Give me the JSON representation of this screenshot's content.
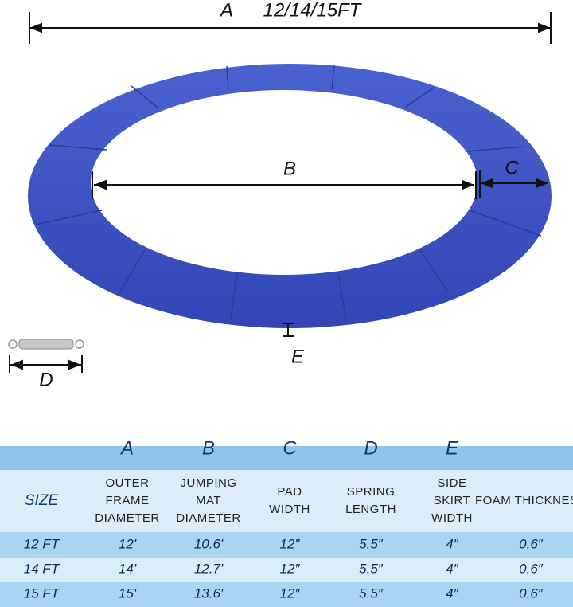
{
  "diagram": {
    "overall_label": "A",
    "overall_size": "12/14/15FT",
    "inner_label": "B",
    "pad_label": "C",
    "spring_label": "D",
    "skirt_label": "E"
  },
  "table": {
    "letters": [
      "A",
      "B",
      "C",
      "D",
      "E"
    ],
    "headers": [
      [
        "SIZE"
      ],
      [
        "OUTER",
        "FRAME",
        "DIAMETER"
      ],
      [
        "JUMPING",
        "MAT",
        "DIAMETER"
      ],
      [
        "PAD",
        "WIDTH"
      ],
      [
        "SPRING",
        "LENGTH"
      ],
      [
        "SIDE",
        "SKIRT",
        "WIDTH"
      ],
      [
        "FOAM THICKNESS"
      ]
    ],
    "rows": [
      [
        "12 FT",
        "12'",
        "10.6'",
        "12″",
        "5.5″",
        "4″",
        "0.6″"
      ],
      [
        "14 FT",
        "14'",
        "12.7'",
        "12″",
        "5.5″",
        "4″",
        "0.6″"
      ],
      [
        "15 FT",
        "15'",
        "13.6'",
        "12″",
        "5.5″",
        "4″",
        "0.6″"
      ]
    ]
  }
}
